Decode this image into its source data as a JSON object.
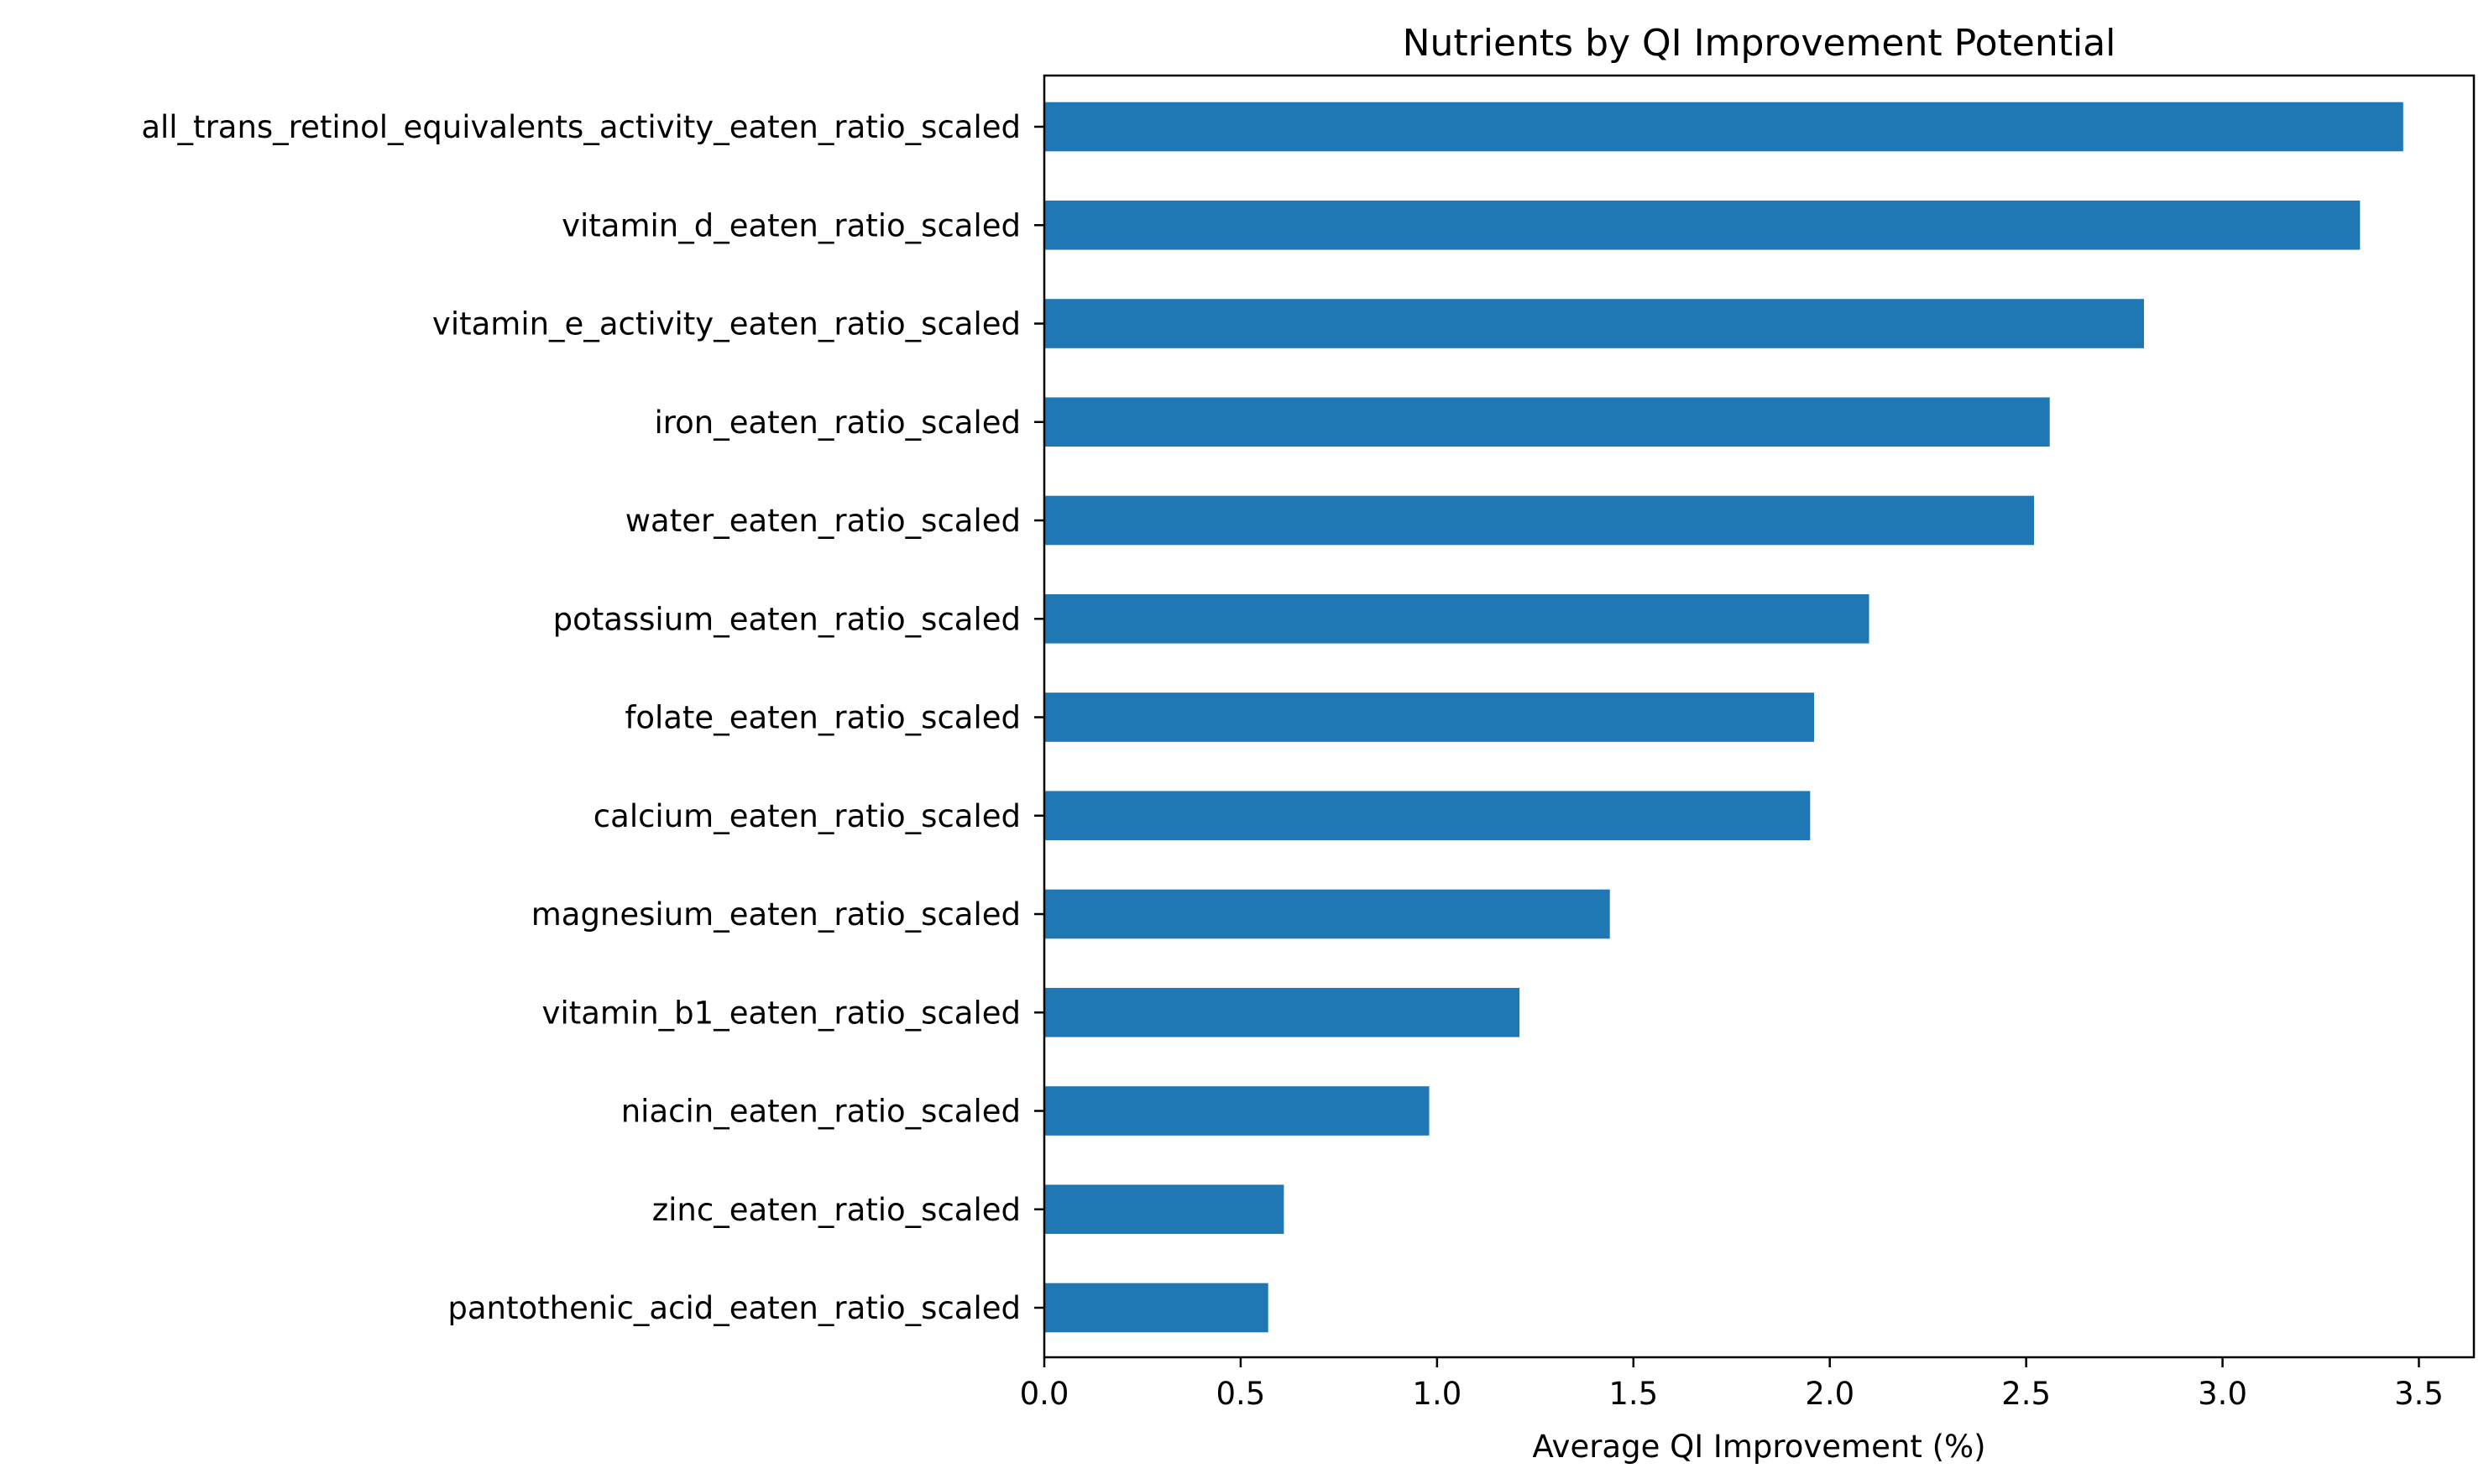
{
  "chart_data": {
    "type": "bar",
    "orientation": "horizontal",
    "title": "Nutrients by QI Improvement Potential",
    "xlabel": "Average QI Improvement (%)",
    "ylabel": "",
    "xlim": [
      0,
      3.64
    ],
    "xticks": [
      0.0,
      0.5,
      1.0,
      1.5,
      2.0,
      2.5,
      3.0,
      3.5
    ],
    "xtick_labels": [
      "0.0",
      "0.5",
      "1.0",
      "1.5",
      "2.0",
      "2.5",
      "3.0",
      "3.5"
    ],
    "grid": false,
    "bar_color": "#1f77b4",
    "categories": [
      "all_trans_retinol_equivalents_activity_eaten_ratio_scaled",
      "vitamin_d_eaten_ratio_scaled",
      "vitamin_e_activity_eaten_ratio_scaled",
      "iron_eaten_ratio_scaled",
      "water_eaten_ratio_scaled",
      "potassium_eaten_ratio_scaled",
      "folate_eaten_ratio_scaled",
      "calcium_eaten_ratio_scaled",
      "magnesium_eaten_ratio_scaled",
      "vitamin_b1_eaten_ratio_scaled",
      "niacin_eaten_ratio_scaled",
      "zinc_eaten_ratio_scaled",
      "pantothenic_acid_eaten_ratio_scaled"
    ],
    "values": [
      3.46,
      3.35,
      2.8,
      2.56,
      2.52,
      2.1,
      1.96,
      1.95,
      1.44,
      1.21,
      0.98,
      0.61,
      0.57
    ]
  }
}
